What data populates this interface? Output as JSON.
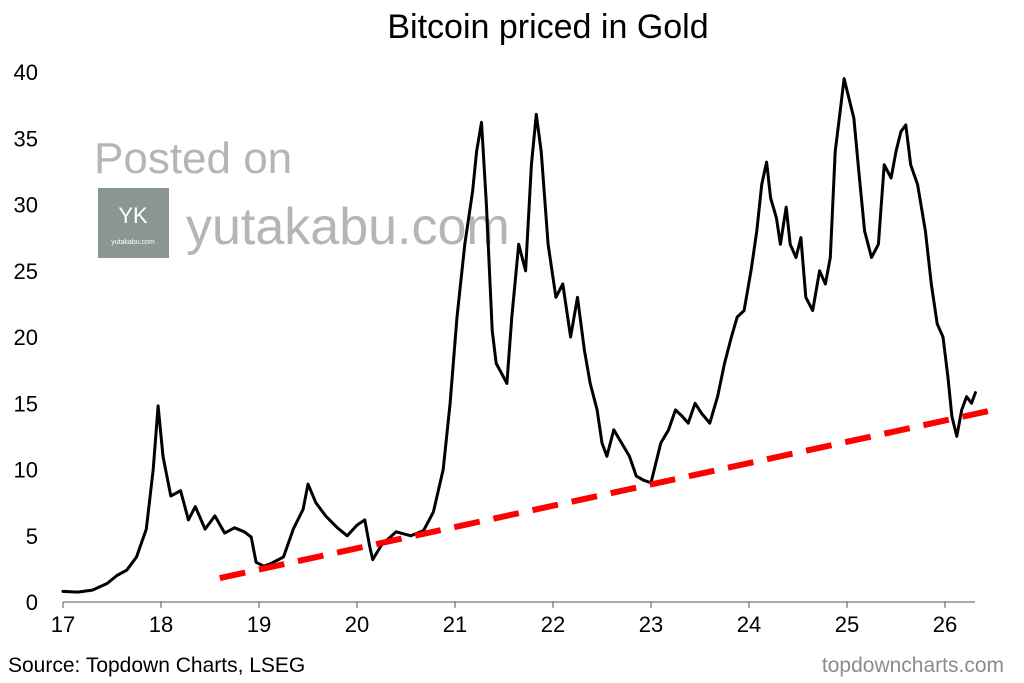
{
  "chart_data": {
    "type": "line",
    "title": "Bitcoin priced in Gold",
    "xlabel": "",
    "ylabel": "",
    "xlim": [
      17,
      26.5
    ],
    "ylim": [
      0,
      40
    ],
    "x_ticks": [
      17,
      18,
      19,
      20,
      21,
      22,
      23,
      24,
      25,
      26
    ],
    "x_tick_labels": [
      "17",
      "18",
      "19",
      "20",
      "21",
      "22",
      "23",
      "24",
      "25",
      "26"
    ],
    "y_ticks": [
      0,
      5,
      10,
      15,
      20,
      25,
      30,
      35,
      40
    ],
    "y_tick_labels": [
      "0",
      "5",
      "10",
      "15",
      "20",
      "25",
      "30",
      "35",
      "40"
    ],
    "grid": false,
    "series": [
      {
        "color": "#000000",
        "points": [
          [
            17.0,
            0.8
          ],
          [
            17.15,
            0.75
          ],
          [
            17.3,
            0.9
          ],
          [
            17.45,
            1.4
          ],
          [
            17.55,
            2.0
          ],
          [
            17.65,
            2.4
          ],
          [
            17.75,
            3.4
          ],
          [
            17.85,
            5.5
          ],
          [
            17.92,
            10.0
          ],
          [
            17.97,
            14.8
          ],
          [
            18.02,
            11.0
          ],
          [
            18.1,
            8.0
          ],
          [
            18.2,
            8.4
          ],
          [
            18.28,
            6.2
          ],
          [
            18.35,
            7.2
          ],
          [
            18.45,
            5.5
          ],
          [
            18.55,
            6.5
          ],
          [
            18.65,
            5.2
          ],
          [
            18.75,
            5.6
          ],
          [
            18.85,
            5.3
          ],
          [
            18.92,
            4.9
          ],
          [
            18.97,
            3.0
          ],
          [
            19.05,
            2.7
          ],
          [
            19.12,
            2.9
          ],
          [
            19.25,
            3.4
          ],
          [
            19.35,
            5.5
          ],
          [
            19.45,
            7.0
          ],
          [
            19.5,
            8.9
          ],
          [
            19.58,
            7.5
          ],
          [
            19.68,
            6.5
          ],
          [
            19.8,
            5.6
          ],
          [
            19.9,
            5.0
          ],
          [
            20.0,
            5.8
          ],
          [
            20.08,
            6.2
          ],
          [
            20.13,
            4.2
          ],
          [
            20.16,
            3.2
          ],
          [
            20.25,
            4.3
          ],
          [
            20.4,
            5.3
          ],
          [
            20.55,
            5.0
          ],
          [
            20.68,
            5.4
          ],
          [
            20.78,
            6.8
          ],
          [
            20.88,
            10.0
          ],
          [
            20.95,
            15.0
          ],
          [
            21.02,
            21.5
          ],
          [
            21.1,
            27.0
          ],
          [
            21.18,
            31.0
          ],
          [
            21.22,
            34.0
          ],
          [
            21.27,
            36.2
          ],
          [
            21.32,
            30.0
          ],
          [
            21.38,
            20.5
          ],
          [
            21.42,
            18.0
          ],
          [
            21.48,
            17.2
          ],
          [
            21.53,
            16.5
          ],
          [
            21.58,
            21.5
          ],
          [
            21.65,
            27.0
          ],
          [
            21.72,
            25.0
          ],
          [
            21.78,
            33.0
          ],
          [
            21.83,
            36.8
          ],
          [
            21.88,
            34.0
          ],
          [
            21.95,
            27.0
          ],
          [
            22.03,
            23.0
          ],
          [
            22.1,
            24.0
          ],
          [
            22.18,
            20.0
          ],
          [
            22.25,
            23.0
          ],
          [
            22.32,
            19.0
          ],
          [
            22.38,
            16.5
          ],
          [
            22.45,
            14.5
          ],
          [
            22.5,
            12.0
          ],
          [
            22.55,
            11.0
          ],
          [
            22.62,
            13.0
          ],
          [
            22.7,
            12.0
          ],
          [
            22.78,
            11.0
          ],
          [
            22.85,
            9.5
          ],
          [
            22.92,
            9.2
          ],
          [
            23.0,
            9.0
          ],
          [
            23.05,
            10.5
          ],
          [
            23.1,
            12.0
          ],
          [
            23.18,
            13.0
          ],
          [
            23.25,
            14.5
          ],
          [
            23.32,
            14.0
          ],
          [
            23.38,
            13.5
          ],
          [
            23.45,
            15.0
          ],
          [
            23.52,
            14.2
          ],
          [
            23.6,
            13.5
          ],
          [
            23.68,
            15.5
          ],
          [
            23.75,
            18.0
          ],
          [
            23.82,
            20.0
          ],
          [
            23.88,
            21.5
          ],
          [
            23.95,
            22.0
          ],
          [
            24.02,
            25.0
          ],
          [
            24.08,
            28.0
          ],
          [
            24.13,
            31.5
          ],
          [
            24.18,
            33.2
          ],
          [
            24.22,
            30.5
          ],
          [
            24.28,
            29.0
          ],
          [
            24.32,
            27.0
          ],
          [
            24.38,
            29.8
          ],
          [
            24.42,
            27.0
          ],
          [
            24.48,
            26.0
          ],
          [
            24.53,
            27.5
          ],
          [
            24.58,
            23.0
          ],
          [
            24.65,
            22.0
          ],
          [
            24.72,
            25.0
          ],
          [
            24.78,
            24.0
          ],
          [
            24.83,
            26.0
          ],
          [
            24.88,
            34.0
          ],
          [
            24.93,
            37.0
          ],
          [
            24.97,
            39.5
          ],
          [
            25.02,
            38.0
          ],
          [
            25.07,
            36.5
          ],
          [
            25.12,
            32.5
          ],
          [
            25.18,
            28.0
          ],
          [
            25.25,
            26.0
          ],
          [
            25.32,
            27.0
          ],
          [
            25.38,
            33.0
          ],
          [
            25.45,
            32.0
          ],
          [
            25.5,
            34.0
          ],
          [
            25.55,
            35.5
          ],
          [
            25.6,
            36.0
          ],
          [
            25.65,
            33.0
          ],
          [
            25.72,
            31.5
          ],
          [
            25.8,
            28.0
          ],
          [
            25.86,
            24.0
          ],
          [
            25.92,
            21.0
          ],
          [
            25.98,
            20.0
          ],
          [
            26.03,
            17.0
          ],
          [
            26.07,
            14.0
          ],
          [
            26.12,
            12.5
          ],
          [
            26.17,
            14.5
          ],
          [
            26.22,
            15.5
          ],
          [
            26.27,
            15.0
          ],
          [
            26.31,
            15.8
          ]
        ]
      },
      {
        "color": "#ff0000",
        "dashed": true,
        "points": [
          [
            18.6,
            1.8
          ],
          [
            26.5,
            14.5
          ]
        ]
      }
    ]
  },
  "footer": {
    "source": "Source: Topdown Charts, LSEG",
    "brand": "topdowncharts.com"
  },
  "watermark": {
    "line1": "Posted on",
    "logo_text": "yutakabu.com",
    "site": "yutakabu.com"
  }
}
